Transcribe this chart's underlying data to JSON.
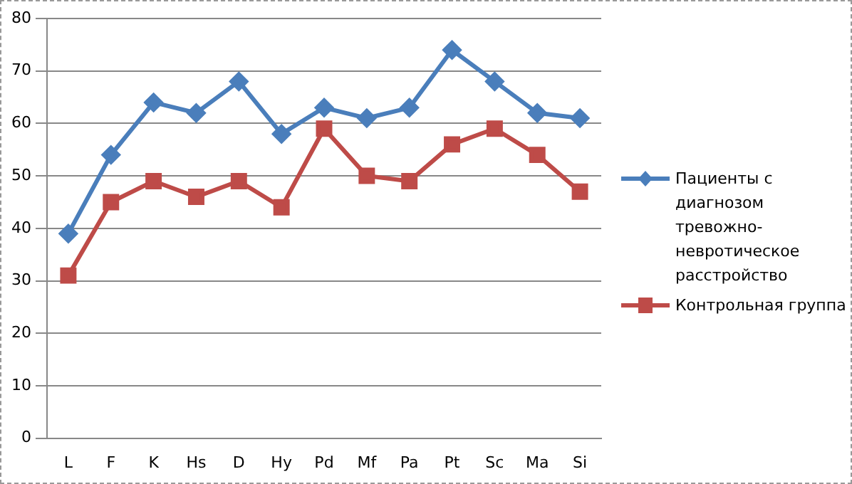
{
  "chart_data": {
    "type": "line",
    "categories": [
      "L",
      "F",
      "K",
      "Hs",
      "D",
      "Hy",
      "Pd",
      "Mf",
      "Pa",
      "Pt",
      "Sc",
      "Ma",
      "Si"
    ],
    "series": [
      {
        "name": "Пациенты с диагнозом тревожно-невротическое расстройство",
        "color": "#4a7ebb",
        "marker": "diamond",
        "values": [
          39,
          54,
          64,
          62,
          68,
          58,
          63,
          61,
          63,
          74,
          68,
          62,
          61
        ]
      },
      {
        "name": "Контрольная группа",
        "color": "#be4b48",
        "marker": "square",
        "values": [
          31,
          45,
          49,
          46,
          49,
          44,
          59,
          50,
          49,
          56,
          59,
          54,
          47
        ]
      }
    ],
    "ylim": [
      0,
      80
    ],
    "yticks": [
      0,
      10,
      20,
      30,
      40,
      50,
      60,
      70,
      80
    ],
    "grid": "y",
    "legend": "right",
    "line_style": "solid"
  }
}
